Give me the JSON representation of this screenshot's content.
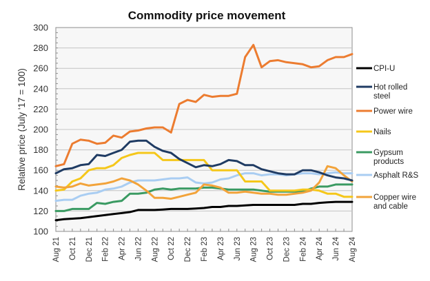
{
  "chart_data": {
    "type": "line",
    "title": "Commodity price movement",
    "xlabel": "",
    "ylabel": "Relative price (July '17 = 100)",
    "ylim": [
      100,
      300
    ],
    "yticks": [
      100,
      120,
      140,
      160,
      180,
      200,
      220,
      240,
      260,
      280,
      300
    ],
    "grid": true,
    "legend_position": "right",
    "x": [
      "Aug 21",
      "Sep 21",
      "Oct 21",
      "Nov 21",
      "Dec 21",
      "Jan 22",
      "Feb 22",
      "Mar 22",
      "Apr 22",
      "May 22",
      "Jun 22",
      "Jul 22",
      "Aug 22",
      "Sep 22",
      "Oct 22",
      "Nov 22",
      "Dec 22",
      "Jan 23",
      "Feb 23",
      "Mar 23",
      "Apr 23",
      "May 23",
      "Jun 23",
      "Jul 23",
      "Aug 23",
      "Sep 23",
      "Oct 23",
      "Nov 23",
      "Dec 23",
      "Jan 24",
      "Feb 24",
      "Mar 24",
      "Apr 24",
      "May 24",
      "Jun 24",
      "Jul 24",
      "Aug 24"
    ],
    "xtick_labels": [
      "Aug 21",
      "Oct 21",
      "Dec 21",
      "Feb 22",
      "Apr 22",
      "Jun 22",
      "Aug 22",
      "Oct 22",
      "Dec 22",
      "Feb 23",
      "Apr 23",
      "Jun 23",
      "Aug 23",
      "Oct 23",
      "Dec 23",
      "Feb 24",
      "Apr 24",
      "Jun 24",
      "Aug 24"
    ],
    "series": [
      {
        "name": "CPI-U",
        "legend": [
          "CPI-U"
        ],
        "color": "#000000",
        "values": [
          111,
          112,
          112.5,
          113,
          114,
          115,
          116,
          117,
          118,
          119,
          121,
          121,
          121,
          121.5,
          122,
          122,
          122,
          122.5,
          123,
          124,
          124,
          125,
          125,
          125.5,
          126,
          126,
          126,
          126,
          126,
          126,
          127,
          127,
          128,
          128.5,
          129,
          129,
          129
        ]
      },
      {
        "name": "Hot rolled steel",
        "legend": [
          "Hot rolled",
          "steel"
        ],
        "color": "#1f3b63",
        "values": [
          157,
          161,
          162,
          165,
          166,
          175,
          174,
          177,
          180,
          188,
          189,
          189,
          183,
          179,
          177,
          171,
          167,
          163,
          165,
          164,
          166,
          170,
          169,
          165,
          165,
          161,
          159,
          157,
          156,
          156,
          160,
          160,
          158,
          155,
          153,
          152,
          150
        ]
      },
      {
        "name": "Power wire",
        "legend": [
          "Power wire"
        ],
        "color": "#ec7c30",
        "values": [
          164,
          166,
          186,
          190,
          189,
          186,
          187,
          194,
          192,
          198,
          199,
          201,
          202,
          202,
          197,
          225,
          229,
          227,
          234,
          232,
          233,
          233,
          235,
          271,
          283,
          261,
          267,
          268,
          266,
          265,
          264,
          261,
          262,
          268,
          271,
          271,
          274
        ]
      },
      {
        "name": "Nails",
        "legend": [
          "Nails"
        ],
        "color": "#f5c71a",
        "values": [
          140,
          141,
          149,
          152,
          160,
          162,
          162,
          165,
          172,
          175,
          177,
          177,
          177,
          170,
          170,
          170,
          170,
          170,
          170,
          160,
          160,
          160,
          160,
          149,
          149,
          149,
          140,
          140,
          140,
          140,
          141,
          141,
          140,
          137,
          137,
          134,
          134
        ]
      },
      {
        "name": "Gypsum products",
        "legend": [
          "Gypsum",
          "products"
        ],
        "color": "#3a9a62",
        "values": [
          120,
          120,
          122,
          122,
          122,
          128,
          127,
          129,
          130,
          137,
          137,
          138,
          141,
          142,
          141,
          142,
          142,
          142,
          143,
          143,
          142,
          141,
          141,
          141,
          141,
          140,
          139,
          139,
          139,
          139,
          139,
          142,
          144,
          144,
          146,
          146,
          146
        ]
      },
      {
        "name": "Asphalt R&S",
        "legend": [
          "Asphalt R&S"
        ],
        "color": "#a9cdf2",
        "values": [
          130,
          131,
          131,
          135,
          137,
          138,
          141,
          142,
          144,
          148,
          150,
          150,
          150,
          151,
          152,
          152,
          153,
          148,
          147,
          148,
          151,
          152,
          155,
          157,
          157,
          155,
          156,
          156,
          155,
          156,
          157,
          157,
          156,
          157,
          158,
          157,
          157
        ]
      },
      {
        "name": "Copper wire and cable",
        "legend": [
          "Copper wire",
          "and cable"
        ],
        "color": "#f2a33a",
        "values": [
          144,
          143,
          144,
          147,
          145,
          146,
          147,
          149,
          152,
          150,
          146,
          140,
          133,
          133,
          132,
          134,
          136,
          138,
          146,
          145,
          143,
          138,
          138,
          139,
          138,
          137,
          137,
          136,
          136,
          137,
          138,
          140,
          148,
          164,
          162,
          155,
          149
        ]
      }
    ]
  }
}
